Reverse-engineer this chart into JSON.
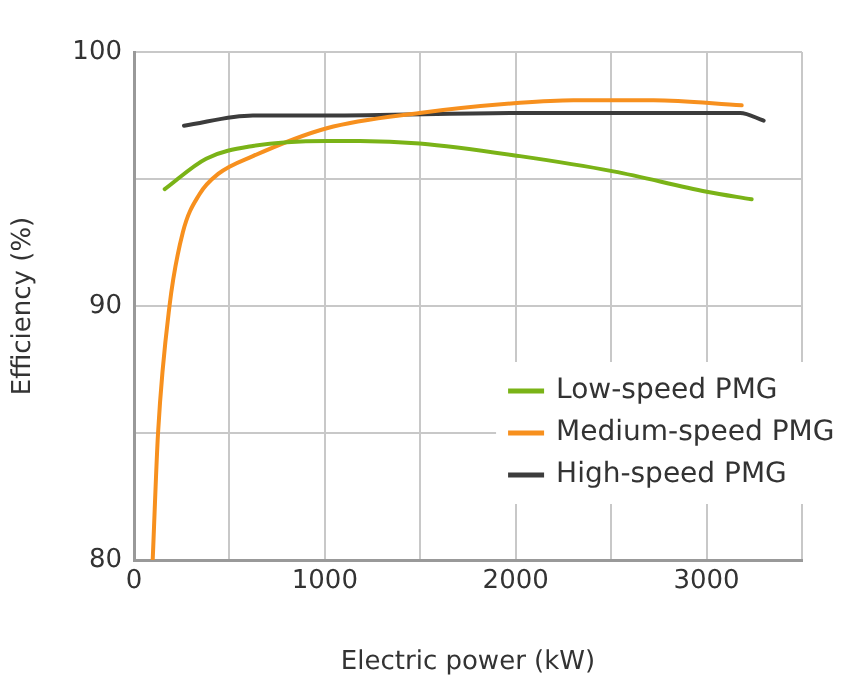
{
  "chart_data": {
    "type": "line",
    "xlabel": "Electric power (kW)",
    "ylabel": "Efficiency (%)",
    "xlim": [
      0,
      3500
    ],
    "xticks": [
      0,
      {
        "value": 500,
        "label": null
      },
      1000,
      {
        "value": 1500,
        "label": null
      },
      2000,
      {
        "value": 2500,
        "label": null
      },
      3000,
      {
        "value": 3500,
        "label": null
      }
    ],
    "ylim": [
      80,
      100
    ],
    "yticks": [
      80,
      {
        "value": 85,
        "label": null
      },
      90,
      {
        "value": 95,
        "label": null
      },
      100
    ],
    "grid": true,
    "legend": "right",
    "marker": "none",
    "line_style": "solid",
    "series": [
      {
        "name": "Low-speed PMG",
        "color": "#7ab317",
        "x": [
          161,
          378,
          623,
          1010,
          1183,
          1497,
          2022,
          2512,
          3001,
          3236
        ],
        "values": [
          94.6,
          95.8,
          96.3,
          96.5,
          96.5,
          96.4,
          95.9,
          95.3,
          94.5,
          94.2
        ]
      },
      {
        "name": "Medium-speed PMG",
        "color": "#f7901e",
        "x": [
          98,
          126,
          186,
          256,
          343,
          441,
          623,
          1010,
          1497,
          2022,
          2302,
          2722,
          3184
        ],
        "values": [
          80,
          85,
          90,
          92.9,
          94.4,
          95.2,
          95.9,
          97,
          97.6,
          98,
          98.1,
          98.1,
          97.9
        ]
      },
      {
        "name": "High-speed PMG",
        "color": "#3c3c3c",
        "x": [
          262,
          623,
          1010,
          2022,
          3176,
          3299
        ],
        "values": [
          97.1,
          97.5,
          97.5,
          97.6,
          97.6,
          97.3
        ]
      }
    ]
  }
}
